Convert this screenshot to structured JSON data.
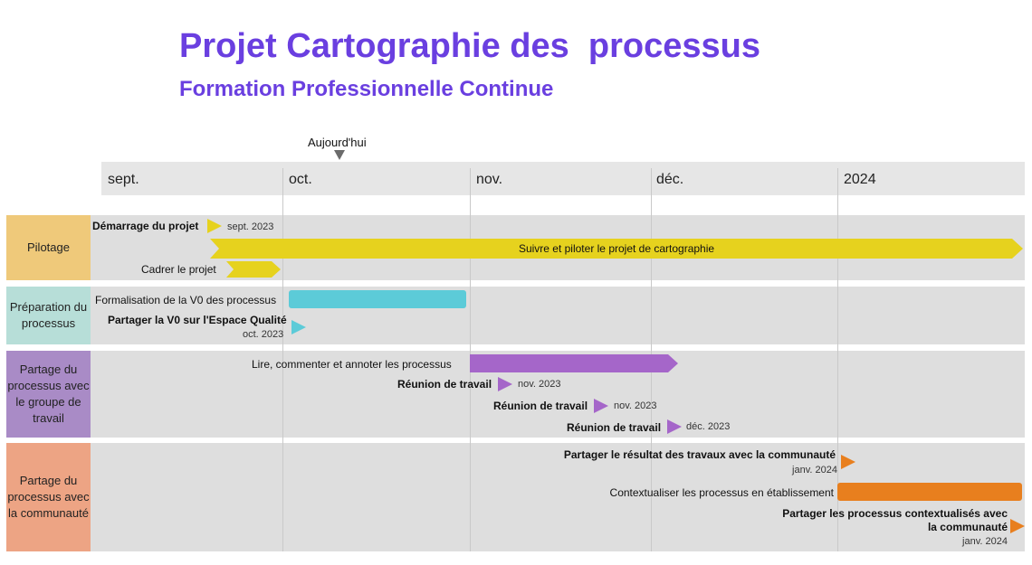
{
  "chart_data": {
    "type": "gantt",
    "title": "Projet Cartographie des  processus",
    "subtitle": "Formation Professionnelle Continue",
    "today_label": "Aujourd'hui",
    "timescale": [
      "sept.",
      "oct.",
      "nov.",
      "déc.",
      "2024"
    ],
    "colors": {
      "pilotage": "#e6d21e",
      "preparation": "#5ccbd8",
      "groupe": "#a566c9",
      "communaute": "#e87f1e"
    },
    "categories": [
      {
        "label": "Pilotage",
        "color": "#efc97a"
      },
      {
        "label": "Préparation du processus",
        "color": "#b7ded8"
      },
      {
        "label": "Partage du processus avec le groupe de travail",
        "color": "#a98bc6"
      },
      {
        "label": "Partage du processus avec la communauté",
        "color": "#eda484"
      }
    ],
    "tasks": {
      "demarrage": {
        "label": "Démarrage du projet",
        "date": "sept. 2023"
      },
      "suivre": {
        "label": "Suivre et piloter le projet de cartographie"
      },
      "cadrer": {
        "label": "Cadrer le projet"
      },
      "formalisation": {
        "label": "Formalisation de la V0 des processus"
      },
      "partager_v0": {
        "label": "Partager la V0 sur l'Espace Qualité",
        "date": "oct. 2023"
      },
      "lire": {
        "label": "Lire, commenter et annoter les processus"
      },
      "reunion1": {
        "label": "Réunion de travail",
        "date": "nov. 2023"
      },
      "reunion2": {
        "label": "Réunion de travail",
        "date": "nov. 2023"
      },
      "reunion3": {
        "label": "Réunion de travail",
        "date": "déc. 2023"
      },
      "partager_resultat": {
        "label": "Partager le résultat des travaux avec la communauté",
        "date": "janv. 2024"
      },
      "contextualiser": {
        "label": "Contextualiser les processus en établissement"
      },
      "partager_ctx_1": {
        "label": "Partager les processus contextualisés avec"
      },
      "partager_ctx_2": {
        "label": "la communauté",
        "date": "janv. 2024"
      }
    }
  }
}
